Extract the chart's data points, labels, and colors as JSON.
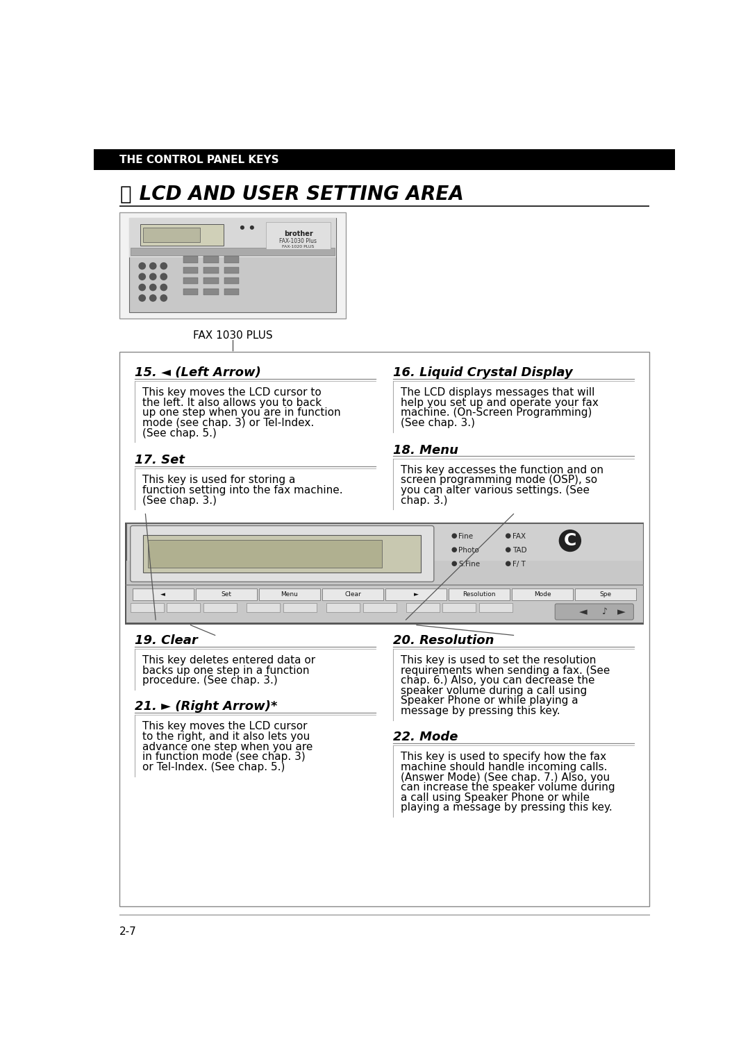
{
  "page_bg": "#ffffff",
  "header_bg": "#000000",
  "header_text": "THE CONTROL PANEL KEYS",
  "header_text_color": "#ffffff",
  "section_symbol": "ⓧ",
  "section_title": " LCD AND USER SETTING AREA",
  "fax_label": "FAX 1030 PLUS",
  "page_number": "2-7",
  "item15_title": "15. ◄ (Left Arrow)",
  "item15_text": "This key moves the LCD cursor to\nthe left. It also allows you to back\nup one step when you are in function\nmode (see chap. 3) or Tel-Index.\n(See chap. 5.)",
  "item16_title": "16. Liquid Crystal Display",
  "item16_text": "The LCD displays messages that will\nhelp you set up and operate your fax\nmachine. (On-Screen Programming)\n(See chap. 3.)",
  "item17_title": "17. Set",
  "item17_text": "This key is used for storing a\nfunction setting into the fax machine.\n(See chap. 3.)",
  "item18_title": "18. Menu",
  "item18_text": "This key accesses the function and on\nscreen programming mode (OSP), so\nyou can alter various settings. (See\nchap. 3.)",
  "item19_title": "19. Clear",
  "item19_text": "This key deletes entered data or\nbacks up one step in a function\nprocedure. (See chap. 3.)",
  "item20_title": "20. Resolution",
  "item20_text": "This key is used to set the resolution\nrequirements when sending a fax. (See\nchap. 6.) Also, you can decrease the\nspeaker volume during a call using\nSpeaker Phone or while playing a\nmessage by pressing this key.",
  "item21_title": "21. ► (Right Arrow)*",
  "item21_text": "This key moves the LCD cursor\nto the right, and it also lets you\nadvance one step when you are\nin function mode (see chap. 3)\nor Tel-Index. (See chap. 5.)",
  "item22_title": "22. Mode",
  "item22_text": "This key is used to specify how the fax\nmachine should handle incoming calls.\n(Answer Mode) (See chap. 7.) Also, you\ncan increase the speaker volume during\na call using Speaker Phone or while\nplaying a message by pressing this key.",
  "btn_labels": [
    "◄",
    "Set",
    "Menu",
    "Clear",
    "►",
    "Resolution",
    "Mode",
    "Spe"
  ],
  "lights_col1": [
    "Fine",
    "Photo",
    "S.Fine"
  ],
  "lights_col2": [
    "FAX",
    "TAD",
    "F/ T"
  ]
}
